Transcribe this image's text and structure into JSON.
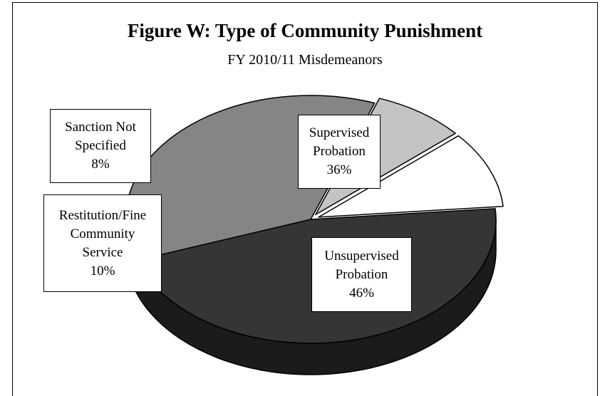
{
  "chart_data": {
    "type": "pie",
    "title": "Figure W:  Type of Community Punishment",
    "subtitle": "FY 2010/11 Misdemeanors",
    "slices": [
      {
        "label_lines": [
          "Unsupervised",
          "Probation"
        ],
        "value": 46,
        "value_label": "46%",
        "color": "#353535"
      },
      {
        "label_lines": [
          "Supervised",
          "Probation"
        ],
        "value": 36,
        "value_label": "36%",
        "color": "#858585"
      },
      {
        "label_lines": [
          "Sanction Not",
          "Specified"
        ],
        "value": 8,
        "value_label": "8%",
        "color": "#c4c4c4"
      },
      {
        "label_lines": [
          "Restitution/Fine",
          "Community",
          "Service"
        ],
        "value": 10,
        "value_label": "10%",
        "color": "#ffffff"
      }
    ],
    "style": "3d-exploded-pie",
    "legend": "none",
    "grid": false
  }
}
